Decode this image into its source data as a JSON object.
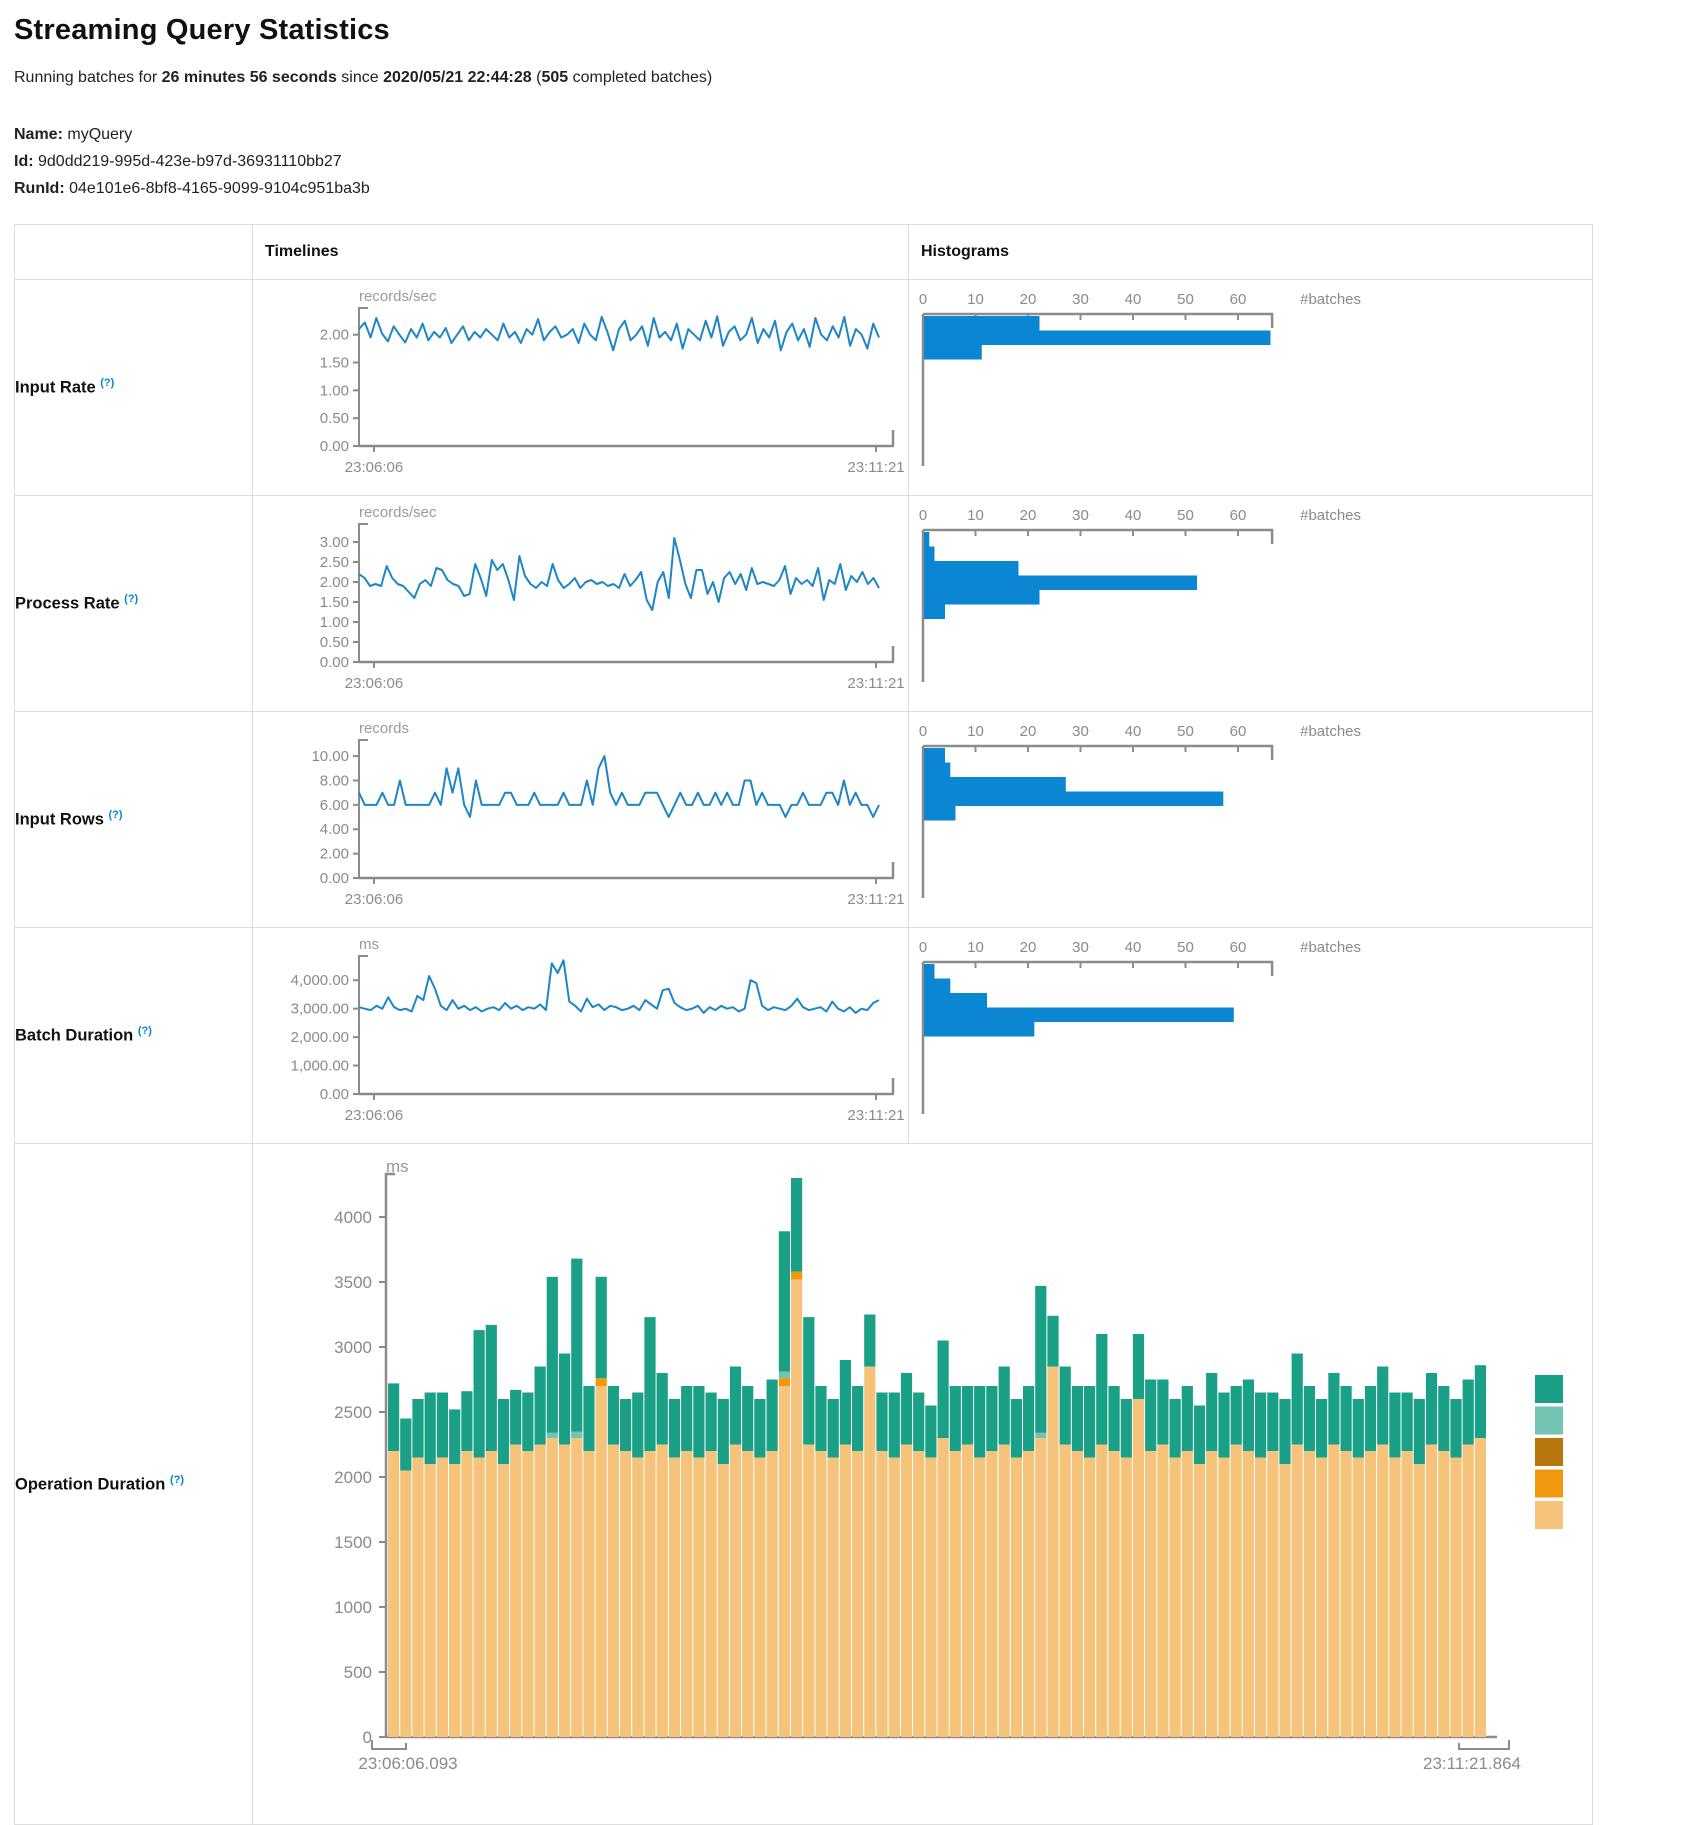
{
  "header": {
    "title": "Streaming Query Statistics",
    "running_prefix": "Running batches for ",
    "duration": "26 minutes 56 seconds",
    "since": " since ",
    "start_time": "2020/05/21 22:44:28",
    "paren_open": " (",
    "completed_batches": "505",
    "completed_suffix": " completed batches)"
  },
  "meta": {
    "name_label": "Name:",
    "name_value": "myQuery",
    "id_label": "Id:",
    "id_value": "9d0dd219-995d-423e-b97d-36931110bb27",
    "runid_label": "RunId:",
    "runid_value": "04e101e6-8bf8-4165-9099-9104c951ba3b"
  },
  "table": {
    "col_timelines": "Timelines",
    "col_histograms": "Histograms",
    "help_marker": "(?)"
  },
  "colors": {
    "line_blue": "#1e86c5",
    "hist_blue": "#0b86d2",
    "axis_gray": "#8c8c8c",
    "tick_text": "#8a8a8a",
    "unit_text": "#999999",
    "help_blue": "#0088cc",
    "op_green": "#1ba088",
    "op_teal": "#74c4b4",
    "op_dark_orange": "#b7770d",
    "op_orange": "#f2980f",
    "op_tan": "#f6c37b",
    "border": "#dddddd"
  },
  "chart_data": {
    "rows": [
      {
        "label": "Input Rate",
        "timeline": {
          "type": "line",
          "unit": "records/sec",
          "x_start": "23:06:06",
          "x_end": "23:11:21",
          "yticks": [
            "2.00",
            "1.50",
            "1.00",
            "0.50",
            "0.00"
          ],
          "ytick_values": [
            2,
            1.5,
            1,
            0.5,
            0
          ],
          "y_top": 2.3,
          "values": [
            2.1,
            2.22,
            1.95,
            2.3,
            2.02,
            1.88,
            2.15,
            2.0,
            1.86,
            2.1,
            1.95,
            2.2,
            1.9,
            2.05,
            1.95,
            2.12,
            1.85,
            2.0,
            2.15,
            1.9,
            2.05,
            1.95,
            2.1,
            2.0,
            1.9,
            2.2,
            1.95,
            2.05,
            1.85,
            2.1,
            2.0,
            2.28,
            1.9,
            2.05,
            2.15,
            1.95,
            2.0,
            2.1,
            1.85,
            2.2,
            2.0,
            1.9,
            2.32,
            2.05,
            1.72,
            2.1,
            2.25,
            1.9,
            2.0,
            2.15,
            1.8,
            2.3,
            1.95,
            2.05,
            1.9,
            2.2,
            1.75,
            2.1,
            2.0,
            1.9,
            2.25,
            1.95,
            2.33,
            1.8,
            2.05,
            2.15,
            1.9,
            2.0,
            2.3,
            1.85,
            2.1,
            1.95,
            2.25,
            1.72,
            2.05,
            2.2,
            1.9,
            2.1,
            1.78,
            2.3,
            2.0,
            1.9,
            2.15,
            1.95,
            2.32,
            1.8,
            2.1,
            2.0,
            1.75,
            2.2,
            1.95
          ]
        },
        "histogram": {
          "type": "bar",
          "x_ticks": [
            0,
            10,
            20,
            30,
            40,
            50,
            60
          ],
          "xlabel": "#batches",
          "bins": [
            22,
            66,
            11
          ]
        }
      },
      {
        "label": "Process Rate",
        "timeline": {
          "type": "line",
          "unit": "records/sec",
          "x_start": "23:06:06",
          "x_end": "23:11:21",
          "yticks": [
            "3.00",
            "2.50",
            "2.00",
            "1.50",
            "1.00",
            "0.50",
            "0.00"
          ],
          "ytick_values": [
            3,
            2.5,
            2,
            1.5,
            1,
            0.5,
            0
          ],
          "y_top": 3.2,
          "values": [
            2.2,
            2.1,
            1.9,
            1.95,
            1.9,
            2.4,
            2.1,
            1.95,
            1.9,
            1.75,
            1.6,
            1.95,
            2.05,
            1.9,
            2.35,
            2.3,
            2.05,
            1.95,
            1.9,
            1.65,
            1.7,
            2.45,
            2.1,
            1.65,
            2.55,
            2.3,
            2.45,
            2.05,
            1.55,
            2.65,
            2.15,
            1.95,
            1.85,
            2.0,
            1.9,
            2.45,
            2.05,
            1.85,
            1.95,
            2.1,
            1.85,
            2.0,
            2.05,
            1.95,
            2.0,
            1.9,
            1.95,
            1.85,
            2.2,
            1.9,
            2.05,
            2.25,
            1.55,
            1.3,
            2.0,
            2.25,
            1.6,
            3.1,
            2.55,
            1.95,
            1.6,
            2.3,
            2.3,
            1.7,
            2.0,
            1.5,
            2.1,
            2.25,
            1.95,
            2.2,
            1.8,
            2.35,
            1.95,
            2.0,
            1.95,
            1.9,
            2.05,
            2.4,
            1.7,
            2.1,
            1.95,
            2.05,
            1.9,
            2.35,
            1.55,
            2.05,
            1.95,
            2.45,
            1.8,
            2.15,
            2.0,
            2.25,
            1.95,
            2.1,
            1.85
          ]
        },
        "histogram": {
          "type": "bar",
          "x_ticks": [
            0,
            10,
            20,
            30,
            40,
            50,
            60
          ],
          "xlabel": "#batches",
          "bins": [
            1,
            2,
            18,
            52,
            22,
            4
          ]
        }
      },
      {
        "label": "Input Rows",
        "timeline": {
          "type": "line",
          "unit": "records",
          "x_start": "23:06:06",
          "x_end": "23:11:21",
          "yticks": [
            "10.00",
            "8.00",
            "6.00",
            "4.00",
            "2.00",
            "0.00"
          ],
          "ytick_values": [
            10,
            8,
            6,
            4,
            2,
            0
          ],
          "y_top": 10.5,
          "values": [
            7,
            6,
            6,
            6,
            7,
            6,
            6,
            8,
            6,
            6,
            6,
            6,
            6,
            7,
            6,
            9,
            7,
            9,
            6,
            5,
            8,
            6,
            6,
            6,
            6,
            7,
            7,
            6,
            6,
            6,
            7,
            6,
            6,
            6,
            6,
            7,
            6,
            6,
            6,
            8,
            6,
            9,
            10,
            7,
            6,
            7,
            6,
            6,
            6,
            7,
            7,
            7,
            6,
            5,
            6,
            7,
            6,
            6,
            7,
            6,
            6,
            7,
            6,
            7,
            6,
            6,
            8,
            8,
            6,
            7,
            6,
            6,
            6,
            5,
            6,
            6,
            7,
            6,
            6,
            6,
            7,
            7,
            6,
            8,
            6,
            7,
            6,
            6,
            5,
            6
          ]
        },
        "histogram": {
          "type": "bar",
          "x_ticks": [
            0,
            10,
            20,
            30,
            40,
            50,
            60
          ],
          "xlabel": "#batches",
          "bins": [
            4,
            5,
            27,
            57,
            6
          ]
        }
      },
      {
        "label": "Batch Duration",
        "timeline": {
          "type": "line",
          "unit": "ms",
          "x_start": "23:06:06",
          "x_end": "23:11:21",
          "yticks": [
            "4,000.00",
            "3,000.00",
            "2,000.00",
            "1,000.00",
            "0.00"
          ],
          "ytick_values": [
            4000,
            3000,
            2000,
            1000,
            0
          ],
          "y_top": 4500,
          "values": [
            3050,
            3000,
            2950,
            3100,
            3000,
            3400,
            3050,
            2950,
            3000,
            2900,
            3450,
            3300,
            4150,
            3700,
            3100,
            2950,
            3300,
            3000,
            3100,
            2950,
            3050,
            2900,
            3000,
            3050,
            2950,
            3200,
            3000,
            3100,
            2950,
            3050,
            3000,
            3150,
            2950,
            4600,
            4250,
            4700,
            3250,
            3100,
            2900,
            3350,
            3050,
            3150,
            2950,
            3100,
            3050,
            2950,
            3000,
            3100,
            2950,
            3300,
            3150,
            3000,
            3650,
            3700,
            3200,
            3050,
            2950,
            3000,
            3100,
            2850,
            3050,
            2950,
            3100,
            3000,
            3050,
            2900,
            3000,
            4000,
            3900,
            3100,
            2950,
            3050,
            3000,
            2950,
            3100,
            3350,
            3050,
            2950,
            3000,
            3050,
            2900,
            3250,
            3000,
            2900,
            3050,
            2850,
            3000,
            2950,
            3200,
            3300
          ]
        },
        "histogram": {
          "type": "bar",
          "x_ticks": [
            0,
            10,
            20,
            30,
            40,
            50,
            60
          ],
          "xlabel": "#batches",
          "bins": [
            2,
            5,
            12,
            59,
            21
          ]
        }
      }
    ],
    "operation": {
      "label": "Operation Duration",
      "type": "stacked-bar",
      "unit": "ms",
      "x_start": "23:06:06.093",
      "x_end": "23:11:21.864",
      "yticks": [
        0,
        500,
        1000,
        1500,
        2000,
        2500,
        3000,
        3500,
        4000
      ],
      "y_top": 4350,
      "segment_colors": [
        "op_tan",
        "op_orange",
        "op_teal",
        "op_green"
      ],
      "legend_colors": [
        "op_green",
        "op_teal",
        "op_dark_orange",
        "op_orange",
        "op_tan"
      ],
      "bars": [
        [
          2200,
          0,
          0,
          520
        ],
        [
          2050,
          0,
          0,
          400
        ],
        [
          2150,
          0,
          0,
          450
        ],
        [
          2100,
          0,
          0,
          550
        ],
        [
          2150,
          0,
          0,
          500
        ],
        [
          2100,
          0,
          0,
          420
        ],
        [
          2200,
          0,
          0,
          460
        ],
        [
          2150,
          0,
          0,
          980
        ],
        [
          2200,
          0,
          0,
          970
        ],
        [
          2100,
          0,
          0,
          500
        ],
        [
          2250,
          0,
          0,
          420
        ],
        [
          2200,
          0,
          0,
          450
        ],
        [
          2250,
          0,
          0,
          600
        ],
        [
          2300,
          0,
          40,
          1200
        ],
        [
          2250,
          0,
          0,
          700
        ],
        [
          2300,
          0,
          50,
          1330
        ],
        [
          2200,
          0,
          0,
          500
        ],
        [
          2700,
          60,
          0,
          780
        ],
        [
          2250,
          0,
          0,
          450
        ],
        [
          2200,
          0,
          0,
          400
        ],
        [
          2150,
          0,
          0,
          500
        ],
        [
          2200,
          0,
          0,
          1030
        ],
        [
          2250,
          0,
          0,
          550
        ],
        [
          2150,
          0,
          0,
          450
        ],
        [
          2200,
          0,
          0,
          500
        ],
        [
          2150,
          0,
          0,
          550
        ],
        [
          2200,
          0,
          0,
          450
        ],
        [
          2100,
          0,
          0,
          500
        ],
        [
          2250,
          0,
          0,
          600
        ],
        [
          2200,
          0,
          0,
          500
        ],
        [
          2150,
          0,
          0,
          450
        ],
        [
          2200,
          0,
          0,
          550
        ],
        [
          2700,
          60,
          50,
          1080
        ],
        [
          3520,
          60,
          0,
          720
        ],
        [
          2250,
          0,
          0,
          980
        ],
        [
          2200,
          0,
          0,
          500
        ],
        [
          2150,
          0,
          0,
          450
        ],
        [
          2250,
          0,
          0,
          650
        ],
        [
          2200,
          0,
          0,
          500
        ],
        [
          2850,
          0,
          0,
          400
        ],
        [
          2200,
          0,
          0,
          450
        ],
        [
          2150,
          0,
          0,
          500
        ],
        [
          2250,
          0,
          0,
          550
        ],
        [
          2200,
          0,
          0,
          450
        ],
        [
          2150,
          0,
          0,
          400
        ],
        [
          2300,
          0,
          0,
          750
        ],
        [
          2200,
          0,
          0,
          500
        ],
        [
          2250,
          0,
          0,
          450
        ],
        [
          2150,
          0,
          0,
          550
        ],
        [
          2200,
          0,
          0,
          500
        ],
        [
          2250,
          0,
          0,
          600
        ],
        [
          2150,
          0,
          0,
          450
        ],
        [
          2200,
          0,
          0,
          500
        ],
        [
          2300,
          0,
          40,
          1130
        ],
        [
          2850,
          0,
          0,
          390
        ],
        [
          2250,
          0,
          0,
          600
        ],
        [
          2200,
          0,
          0,
          500
        ],
        [
          2150,
          0,
          0,
          550
        ],
        [
          2250,
          0,
          0,
          850
        ],
        [
          2200,
          0,
          0,
          500
        ],
        [
          2150,
          0,
          0,
          450
        ],
        [
          2600,
          0,
          0,
          500
        ],
        [
          2200,
          0,
          0,
          550
        ],
        [
          2250,
          0,
          0,
          500
        ],
        [
          2150,
          0,
          0,
          450
        ],
        [
          2200,
          0,
          0,
          500
        ],
        [
          2100,
          0,
          0,
          450
        ],
        [
          2200,
          0,
          0,
          600
        ],
        [
          2150,
          0,
          0,
          500
        ],
        [
          2250,
          0,
          0,
          450
        ],
        [
          2200,
          0,
          0,
          550
        ],
        [
          2150,
          0,
          0,
          500
        ],
        [
          2200,
          0,
          0,
          450
        ],
        [
          2100,
          0,
          0,
          500
        ],
        [
          2250,
          0,
          0,
          700
        ],
        [
          2200,
          0,
          0,
          500
        ],
        [
          2150,
          0,
          0,
          450
        ],
        [
          2250,
          0,
          0,
          550
        ],
        [
          2200,
          0,
          0,
          500
        ],
        [
          2150,
          0,
          0,
          450
        ],
        [
          2200,
          0,
          0,
          500
        ],
        [
          2250,
          0,
          0,
          600
        ],
        [
          2150,
          0,
          0,
          500
        ],
        [
          2200,
          0,
          0,
          450
        ],
        [
          2100,
          0,
          0,
          500
        ],
        [
          2250,
          0,
          0,
          550
        ],
        [
          2200,
          0,
          0,
          500
        ],
        [
          2150,
          0,
          0,
          450
        ],
        [
          2250,
          0,
          0,
          500
        ],
        [
          2300,
          0,
          0,
          560
        ]
      ]
    }
  }
}
